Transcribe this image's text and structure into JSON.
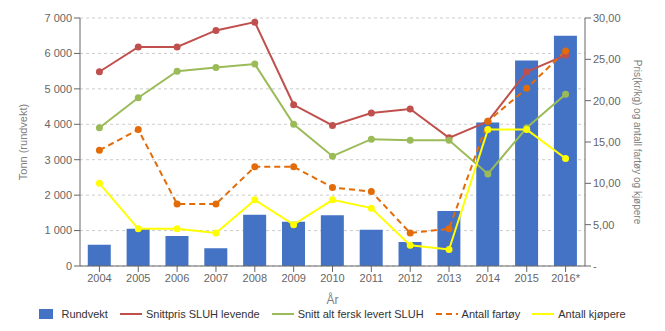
{
  "chart_data": {
    "type": "bar",
    "categories": [
      "2004",
      "2005",
      "2006",
      "2007",
      "2008",
      "2009",
      "2010",
      "2011",
      "2012",
      "2013",
      "2014",
      "2015",
      "2016*"
    ],
    "xlabel": "År",
    "ylabel": "Tonn (rundvekt)",
    "y2label": "Pris(kr/kg) og antall fartøy og kjøpere",
    "ylim": [
      0,
      7000
    ],
    "yticks": [
      0,
      {
        "value": 1000,
        "label": "1 000"
      },
      {
        "value": 2000,
        "label": "2 000"
      },
      {
        "value": 3000,
        "label": "3 000"
      },
      {
        "value": 4000,
        "label": "4 000"
      },
      {
        "value": 5000,
        "label": "5 000"
      },
      {
        "value": 6000,
        "label": "6 000"
      },
      {
        "value": 7000,
        "label": "7 000"
      }
    ],
    "y2lim": [
      0,
      30
    ],
    "y2ticks": [
      {
        "value": 0,
        "label": "-"
      },
      {
        "value": 5,
        "label": "5,00"
      },
      {
        "value": 10,
        "label": "10,00"
      },
      {
        "value": 15,
        "label": "15,00"
      },
      {
        "value": 20,
        "label": "20,00"
      },
      {
        "value": 25,
        "label": "25,00"
      },
      {
        "value": 30,
        "label": "30,00"
      }
    ],
    "grid": true,
    "legend": "bottom",
    "series": [
      {
        "name": "Rundvekt",
        "type": "bar",
        "color": "#4472C4",
        "values": [
          600,
          1050,
          850,
          500,
          1450,
          1250,
          1430,
          1020,
          680,
          1550,
          4050,
          5800,
          6500
        ]
      },
      {
        "name": "Snittpris SLUH levende",
        "type": "line",
        "axis": "y2",
        "color": "#C0504D",
        "marker": "circle",
        "line_style": "solid",
        "values": [
          23.5,
          26.5,
          26.5,
          28.5,
          29.5,
          19.5,
          17.0,
          18.5,
          19.0,
          15.5,
          17.5,
          23.5,
          25.5
        ]
      },
      {
        "name": "Snitt alt fersk levert SLUH",
        "type": "line",
        "color": "#9BBB59",
        "marker": "circle",
        "line_style": "solid",
        "values": [
          3900,
          4750,
          5500,
          5600,
          5700,
          4000,
          3100,
          3580,
          3550,
          3550,
          2600,
          3900,
          4850
        ]
      },
      {
        "name": "Antall fartøy",
        "type": "line",
        "axis": "y2",
        "color": "#E36C09",
        "marker": "circle",
        "line_style": "dashed",
        "values": [
          14.0,
          16.5,
          7.5,
          7.5,
          12.0,
          12.0,
          9.5,
          9.0,
          4.0,
          4.5,
          17.5,
          21.5,
          26.0
        ]
      },
      {
        "name": "Antall kjøpere",
        "type": "line",
        "axis": "y2",
        "color": "#FFFF00",
        "marker": "circle",
        "line_style": "solid",
        "values": [
          10.0,
          4.5,
          4.5,
          4.0,
          8.0,
          5.0,
          8.0,
          7.0,
          2.5,
          2.0,
          16.5,
          16.5,
          13.0
        ]
      }
    ]
  }
}
